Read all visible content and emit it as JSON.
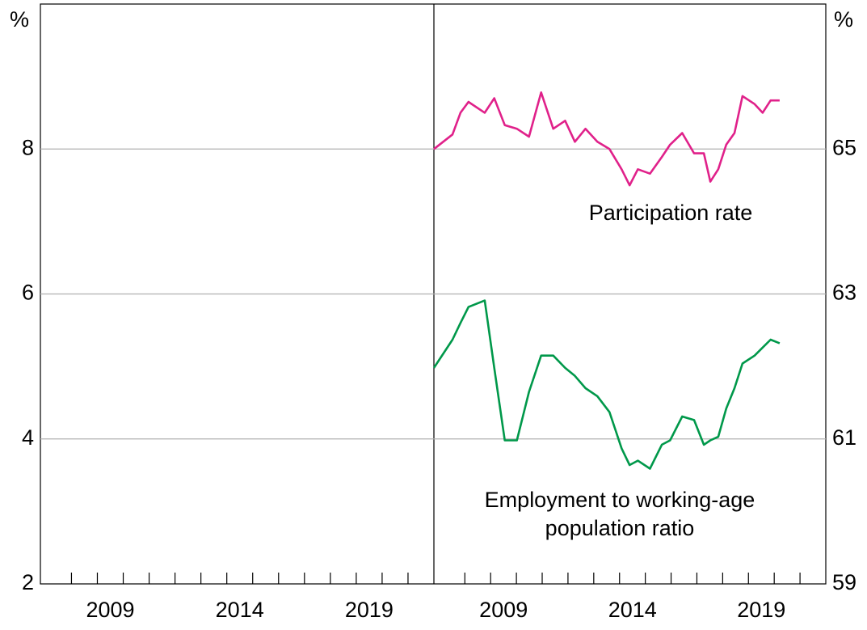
{
  "chart_data": {
    "type": "line",
    "ylabel": "%",
    "y2label": "%",
    "ylim": [
      2,
      10
    ],
    "yticks": [
      2,
      4,
      6,
      8
    ],
    "y2lim": [
      59,
      67
    ],
    "y2ticks": [
      59,
      61,
      63,
      65
    ],
    "xlim": [
      2006.8,
      2022
    ],
    "xticks": [
      2008,
      2009,
      2010,
      2011,
      2012,
      2013,
      2014,
      2015,
      2016,
      2017,
      2018,
      2019,
      2020,
      2021
    ],
    "xtick_labels": [
      2009,
      2014,
      2019
    ],
    "grid": true,
    "x": [
      2006.8,
      2007.52,
      2007.83,
      2008.14,
      2008.77,
      2009.14,
      2009.55,
      2010.02,
      2010.49,
      2010.96,
      2011.43,
      2011.89,
      2012.27,
      2012.68,
      2013.14,
      2013.61,
      2014.08,
      2014.39,
      2014.71,
      2015.18,
      2015.64,
      2015.96,
      2016.43,
      2016.89,
      2017.27,
      2017.52,
      2017.83,
      2018.14,
      2018.46,
      2018.77,
      2019.24,
      2019.55,
      2019.86,
      2020.21
    ],
    "series": [
      {
        "name": "Participation rate",
        "color": "#e0218a",
        "axis": "y2",
        "values": [
          65.0,
          65.2,
          65.5,
          65.65,
          65.5,
          65.7,
          65.33,
          65.28,
          65.17,
          65.78,
          65.28,
          65.39,
          65.1,
          65.28,
          65.1,
          65.0,
          64.72,
          64.5,
          64.72,
          64.66,
          64.89,
          65.06,
          65.22,
          64.94,
          64.94,
          64.55,
          64.72,
          65.06,
          65.22,
          65.73,
          65.62,
          65.5,
          65.67,
          65.67
        ]
      },
      {
        "name": "Employment to working-age population ratio",
        "color": "#00984a",
        "axis": "y2",
        "values": [
          61.98,
          62.37,
          62.6,
          62.82,
          62.91,
          61.98,
          60.98,
          60.98,
          61.65,
          62.15,
          62.15,
          61.98,
          61.87,
          61.7,
          61.59,
          61.37,
          60.87,
          60.64,
          60.7,
          60.59,
          60.92,
          60.98,
          61.31,
          61.26,
          60.92,
          60.98,
          61.03,
          61.42,
          61.7,
          62.04,
          62.15,
          62.26,
          62.37,
          62.32
        ]
      }
    ],
    "annotations": [
      {
        "lines": [
          "Participation rate"
        ]
      },
      {
        "lines": [
          "Employment to working-age",
          "population ratio"
        ]
      }
    ]
  }
}
